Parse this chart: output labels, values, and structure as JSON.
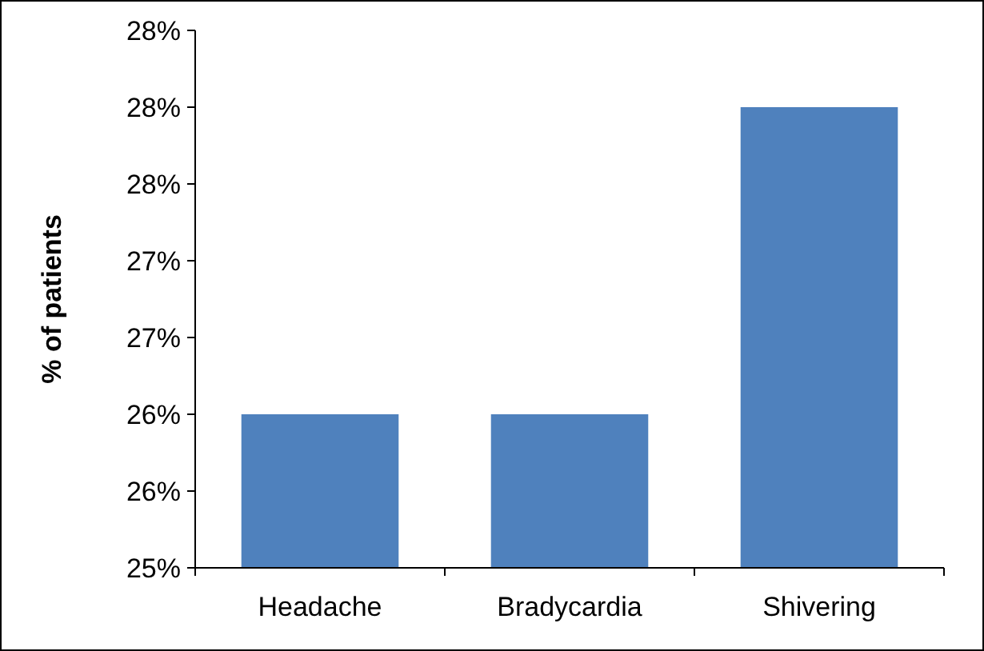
{
  "chart_data": {
    "type": "bar",
    "ylabel": "% of patients",
    "categories": [
      "Headache",
      "Bradycardia",
      "Shivering"
    ],
    "values": [
      26.0,
      26.0,
      28.0
    ],
    "color": "#4f81bd",
    "ylim": [
      25,
      28.5
    ],
    "yticks": [
      {
        "value": 25,
        "label": "25%"
      },
      {
        "value": 25.5,
        "label": "26%"
      },
      {
        "value": 26,
        "label": "26%"
      },
      {
        "value": 26.5,
        "label": "27%"
      },
      {
        "value": 27,
        "label": "27%"
      },
      {
        "value": 27.5,
        "label": "28%"
      },
      {
        "value": 28,
        "label": "28%"
      },
      {
        "value": 28.5,
        "label": "28%"
      }
    ],
    "grid": false
  }
}
